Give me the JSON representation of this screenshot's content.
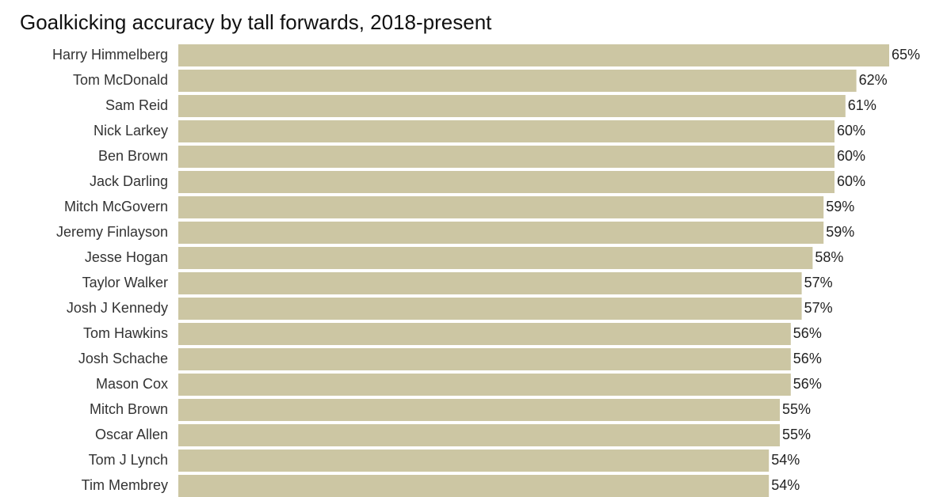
{
  "chart_data": {
    "type": "bar",
    "orientation": "horizontal",
    "title": "Goalkicking accuracy by tall forwards, 2018-present",
    "categories": [
      "Harry Himmelberg",
      "Tom McDonald",
      "Sam Reid",
      "Nick Larkey",
      "Ben Brown",
      "Jack Darling",
      "Mitch McGovern",
      "Jeremy Finlayson",
      "Jesse Hogan",
      "Taylor Walker",
      "Josh J Kennedy",
      "Tom Hawkins",
      "Josh Schache",
      "Mason Cox",
      "Mitch Brown",
      "Oscar Allen",
      "Tom J Lynch",
      "Tim Membrey"
    ],
    "values": [
      65,
      62,
      61,
      60,
      60,
      60,
      59,
      59,
      58,
      57,
      57,
      56,
      56,
      56,
      55,
      55,
      54,
      54
    ],
    "value_labels": [
      "65%",
      "62%",
      "61%",
      "60%",
      "60%",
      "60%",
      "59%",
      "59%",
      "58%",
      "57%",
      "57%",
      "56%",
      "56%",
      "56%",
      "55%",
      "55%",
      "54%",
      "54%"
    ],
    "color": "#ccc6a3",
    "xlim": [
      0,
      70
    ]
  }
}
